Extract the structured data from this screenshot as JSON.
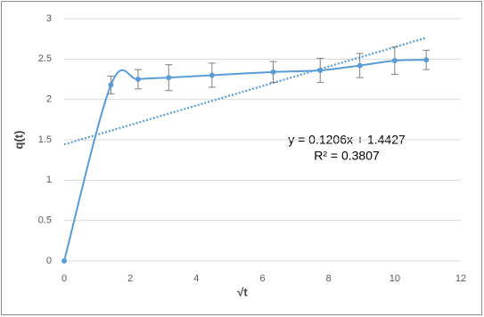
{
  "chart_data": {
    "type": "scatter",
    "x": [
      0,
      1.414,
      2.236,
      3.162,
      4.472,
      6.325,
      7.746,
      8.944,
      10,
      10.954
    ],
    "series": [
      {
        "color": "#5b9bd5",
        "values": [
          0,
          2.18,
          2.25,
          2.27,
          2.3,
          2.34,
          2.36,
          2.42,
          2.48,
          2.49
        ],
        "errors": [
          null,
          0.11,
          0.12,
          0.16,
          0.15,
          0.13,
          0.15,
          0.15,
          0.17,
          0.12
        ]
      }
    ],
    "error_color": "#7f7f7f",
    "trendline": {
      "slope": 0.1206,
      "intercept": 1.4427
    },
    "annotation": [
      "y = 0.1206x + 1.4427",
      "R² = 0.3807"
    ],
    "x_label": "√t",
    "y_label": "q(t)",
    "xlim": [
      0,
      12
    ],
    "xticks": [
      0,
      2,
      4,
      6,
      8,
      10,
      12
    ],
    "ylim": [
      0,
      3
    ],
    "yticks": [
      0,
      0.5,
      1,
      1.5,
      2,
      2.5,
      3
    ],
    "grid": true
  }
}
